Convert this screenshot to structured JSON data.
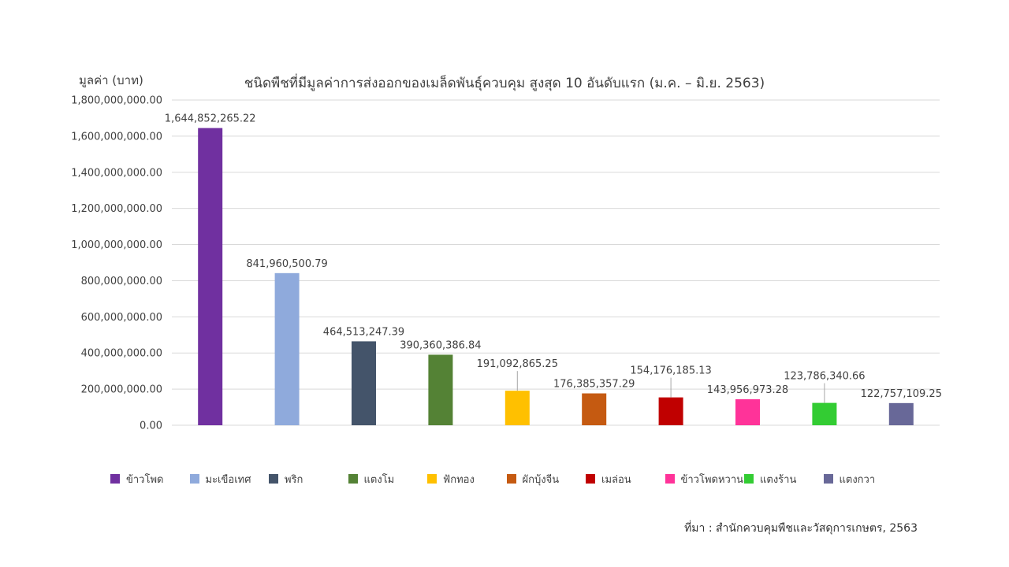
{
  "chart_data": {
    "type": "bar",
    "title": "ชนิดพืชที่มีมูลค่าการส่งออกของเมล็ดพันธุ์ควบคุม สูงสุด 10 อันดับแรก (ม.ค. – มิ.ย. 2563)",
    "ylabel": "มูลค่า (บาท)",
    "xlabel": "",
    "ylim": [
      0,
      1800000000
    ],
    "yticks": [
      0,
      200000000,
      400000000,
      600000000,
      800000000,
      1000000000,
      1200000000,
      1400000000,
      1600000000,
      1800000000
    ],
    "ytick_labels": [
      "0.00",
      "200,000,000.00",
      "400,000,000.00",
      "600,000,000.00",
      "800,000,000.00",
      "1,000,000,000.00",
      "1,200,000,000.00",
      "1,400,000,000.00",
      "1,600,000,000.00",
      "1,800,000,000.00"
    ],
    "grid": true,
    "legend_position": "bottom",
    "categories": [
      "ข้าวโพด",
      "มะเขือเทศ",
      "พริก",
      "แตงโม",
      "ฟักทอง",
      "ผักบุ้งจีน",
      "เมล่อน",
      "ข้าวโพดหวาน",
      "แตงร้าน",
      "แตงกวา"
    ],
    "values": [
      1644852265.22,
      841960500.79,
      464513247.39,
      390360386.84,
      191092865.25,
      176385357.29,
      154176185.13,
      143956973.28,
      123786340.66,
      122757109.25
    ],
    "data_labels": [
      "1,644,852,265.22",
      "841,960,500.79",
      "464,513,247.39",
      "390,360,386.84",
      "191,092,865.25",
      "176,385,357.29",
      "154,176,185.13",
      "143,956,973.28",
      "123,786,340.66",
      "122,757,109.25"
    ],
    "colors": [
      "#7030a0",
      "#8faadc",
      "#44546a",
      "#548235",
      "#ffc000",
      "#c55a11",
      "#c00000",
      "#ff3399",
      "#33cc33",
      "#686898"
    ]
  },
  "source": "ที่มา : สำนักควบคุมพืชและวัสดุการเกษตร, 2563"
}
